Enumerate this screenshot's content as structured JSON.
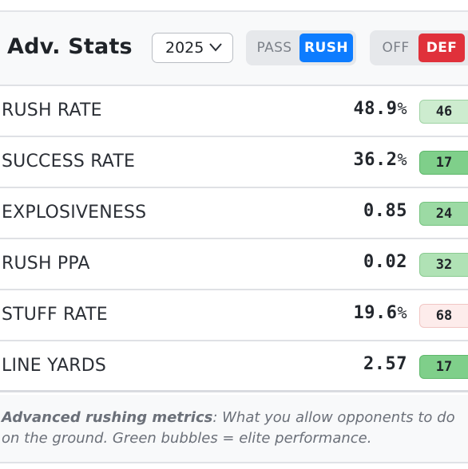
{
  "header": {
    "title": "Adv. Stats",
    "year": "2025",
    "toggles": {
      "pass_label": "PASS",
      "rush_label": "RUSH",
      "selected_play_type": "RUSH",
      "off_label": "OFF",
      "def_label": "DEF",
      "selected_side": "DEF"
    }
  },
  "stats": [
    {
      "label": "RUSH RATE",
      "value": "48.9",
      "unit": "%",
      "rank": "46",
      "rank_bg": "#cdeccf",
      "rank_border": "#9fd3a4"
    },
    {
      "label": "SUCCESS RATE",
      "value": "36.2",
      "unit": "%",
      "rank": "17",
      "rank_bg": "#7fcf8a",
      "rank_border": "#5fb86b"
    },
    {
      "label": "EXPLOSIVENESS",
      "value": "0.85",
      "unit": "",
      "rank": "24",
      "rank_bg": "#9cdaa4",
      "rank_border": "#76c380"
    },
    {
      "label": "RUSH PPA",
      "value": "0.02",
      "unit": "",
      "rank": "32",
      "rank_bg": "#b0e2b5",
      "rank_border": "#8acb91"
    },
    {
      "label": "STUFF RATE",
      "value": "19.6",
      "unit": "%",
      "rank": "68",
      "rank_bg": "#fdeceb",
      "rank_border": "#f1c6c4"
    },
    {
      "label": "LINE YARDS",
      "value": "2.57",
      "unit": "",
      "rank": "17",
      "rank_bg": "#7fcf8a",
      "rank_border": "#5fb86b"
    }
  ],
  "footer": {
    "lead": "Advanced rushing metrics",
    "text": ": What you allow opponents to do on the ground. Green bubbles = elite performance."
  },
  "colors": {
    "rush_active": "#0d7cff",
    "def_active": "#e0313b"
  }
}
